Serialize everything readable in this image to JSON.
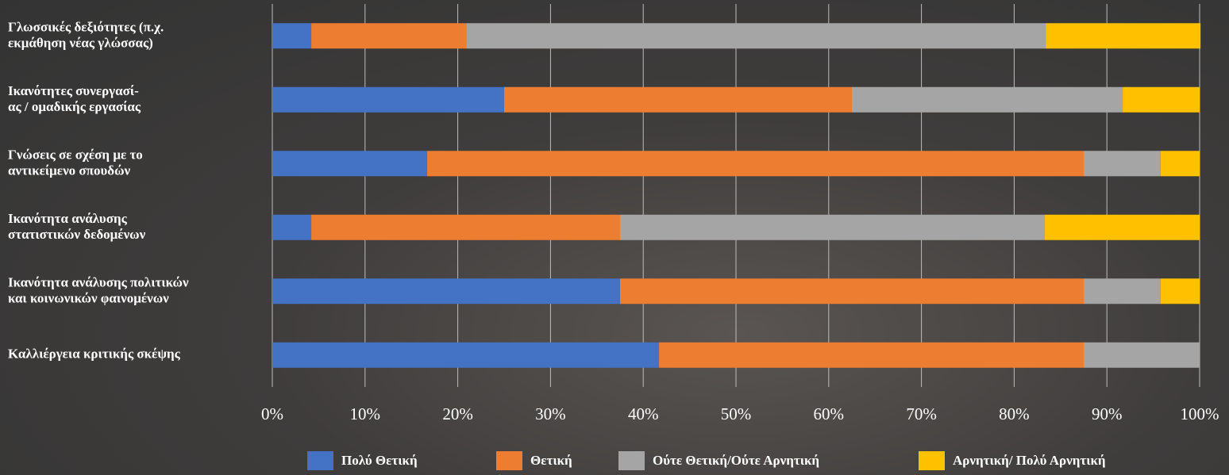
{
  "chart_data": {
    "type": "stacked-barh",
    "categories": [
      "Γλωσσικές δεξιότητες (π.χ.\nεκμάθηση νέας γλώσσας)",
      "Ικανότητες συνεργασί-\nας / ομαδικής εργασίας",
      "Γνώσεις σε σχέση με το\nαντικείμενο σπουδών",
      "Ικανότητα ανάλυσης\nστατιστικών δεδομένων",
      "Ικανότητα ανάλυσης πολιτικών\nκαι κοινωνικών φαινομένων",
      "Καλλιέργεια κριτικής σκέψης"
    ],
    "series": [
      {
        "name": "Πολύ Θετική",
        "color": "#4472c4",
        "values": [
          4.2,
          25,
          16.7,
          4.2,
          37.5,
          41.7
        ]
      },
      {
        "name": "Θετική",
        "color": "#ed7d31",
        "values": [
          16.7,
          37.5,
          70.8,
          33.3,
          50,
          45.8
        ]
      },
      {
        "name": "Ούτε Θετική/Ούτε Αρνητική",
        "color": "#a5a5a5",
        "values": [
          62.5,
          29.2,
          8.3,
          45.8,
          8.3,
          12.5
        ]
      },
      {
        "name": "Αρνητική/ Πολύ Αρνητική",
        "color": "#ffc000",
        "values": [
          16.7,
          8.3,
          4.2,
          16.7,
          4.2,
          0
        ]
      }
    ],
    "xlim": [
      0,
      100
    ],
    "xticks": [
      {
        "value": 0,
        "label": "0%"
      },
      {
        "value": 10,
        "label": "10%"
      },
      {
        "value": 20,
        "label": "20%"
      },
      {
        "value": 30,
        "label": "30%"
      },
      {
        "value": 40,
        "label": "40%"
      },
      {
        "value": 50,
        "label": "50%"
      },
      {
        "value": 60,
        "label": "60%"
      },
      {
        "value": 70,
        "label": "70%"
      },
      {
        "value": 80,
        "label": "80%"
      },
      {
        "value": 90,
        "label": "90%"
      },
      {
        "value": 100,
        "label": "100%"
      }
    ],
    "grid": true,
    "legend": "bottom"
  }
}
